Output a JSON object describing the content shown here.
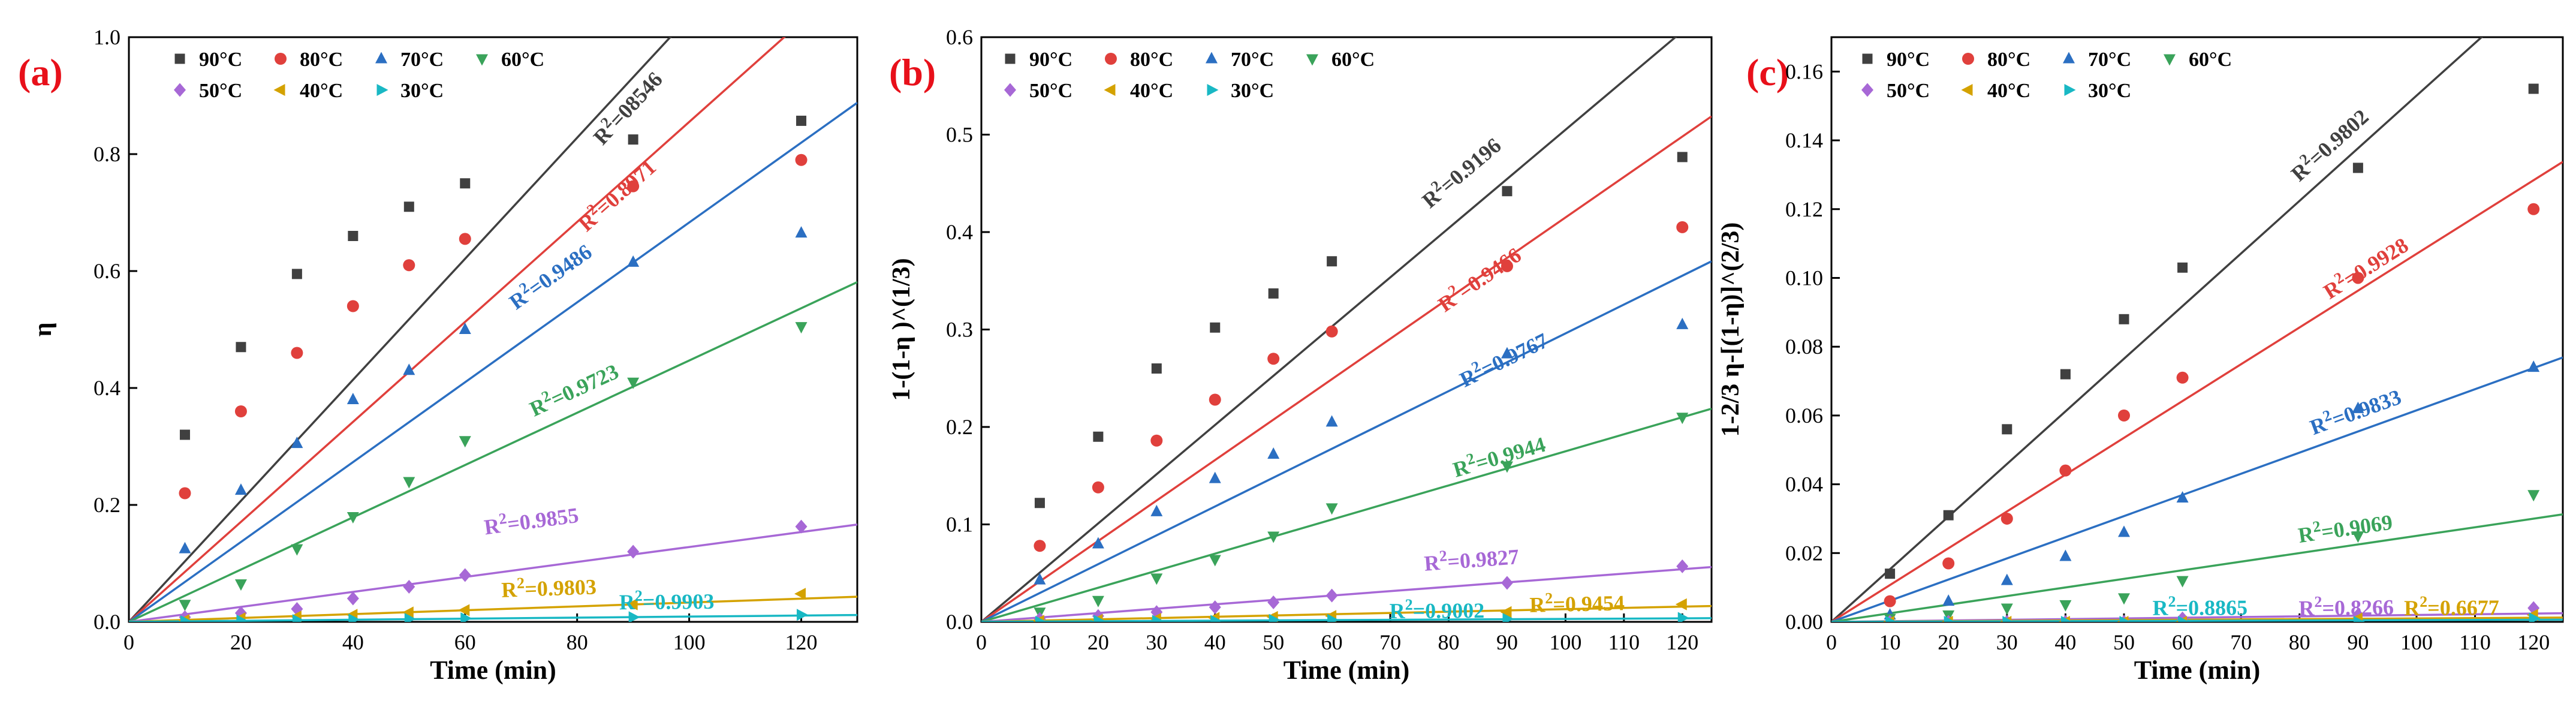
{
  "colors": {
    "90C": "#404040",
    "80C": "#e0403c",
    "70C": "#2b6fc2",
    "60C": "#3aa35a",
    "50C": "#a768d6",
    "40C": "#d4a200",
    "30C": "#19b8c4",
    "panel_label": "#e8101a"
  },
  "legend": {
    "s90": "90°C",
    "s80": "80°C",
    "s70": "70°C",
    "s60": "60°C",
    "s50": "50°C",
    "s40": "40°C",
    "s30": "30°C"
  },
  "chart_data": [
    {
      "panel": "(a)",
      "type": "scatter",
      "xlabel": "Time (min)",
      "ylabel": "η",
      "xlim": [
        0,
        130
      ],
      "ylim": [
        0,
        1.0
      ],
      "xticks": [
        0,
        20,
        40,
        60,
        80,
        100,
        120
      ],
      "yticks": [
        0.0,
        0.2,
        0.4,
        0.6,
        0.8,
        1.0
      ],
      "ytick_labels": [
        "0.0",
        "0.2",
        "0.4",
        "0.6",
        "0.8",
        "1.0"
      ],
      "x": [
        10,
        20,
        30,
        40,
        50,
        60,
        90,
        120
      ],
      "legend_position": "top-left",
      "series": [
        {
          "name": "90°C",
          "values": [
            0.32,
            0.47,
            0.595,
            0.66,
            0.71,
            0.75,
            0.825,
            0.857
          ],
          "fit_slope": 0.01035,
          "r2_label": "R²=08546",
          "r2_pos": [
            90,
            0.87
          ]
        },
        {
          "name": "80°C",
          "values": [
            0.22,
            0.36,
            0.46,
            0.54,
            0.61,
            0.655,
            0.745,
            0.79
          ],
          "fit_slope": 0.00855,
          "r2_label": "R²=0.8971",
          "r2_pos": [
            88,
            0.72
          ]
        },
        {
          "name": "70°C",
          "values": [
            0.125,
            0.225,
            0.305,
            0.38,
            0.43,
            0.5,
            0.615,
            0.665
          ],
          "fit_slope": 0.00683,
          "r2_label": "R²=0.9486",
          "r2_pos": [
            76,
            0.58
          ]
        },
        {
          "name": "60°C",
          "values": [
            0.03,
            0.065,
            0.125,
            0.18,
            0.24,
            0.31,
            0.41,
            0.505
          ],
          "fit_slope": 0.00447,
          "r2_label": "R²=0.9723",
          "r2_pos": [
            80,
            0.385
          ]
        },
        {
          "name": "50°C",
          "values": [
            0.008,
            0.015,
            0.022,
            0.04,
            0.06,
            0.08,
            0.12,
            0.163
          ],
          "fit_slope": 0.00128,
          "r2_label": "R²=0.9855",
          "r2_pos": [
            72,
            0.16
          ]
        },
        {
          "name": "40°C",
          "values": [
            0.003,
            0.006,
            0.009,
            0.012,
            0.016,
            0.02,
            0.03,
            0.048
          ],
          "fit_slope": 0.00033,
          "r2_label": "R²=0.9803",
          "r2_pos": [
            75,
            0.045
          ]
        },
        {
          "name": "30°C",
          "values": [
            0.001,
            0.002,
            0.003,
            0.004,
            0.005,
            0.006,
            0.008,
            0.012
          ],
          "fit_slope": 9e-05,
          "r2_label": "R²=0.9903",
          "r2_pos": [
            96,
            0.022
          ]
        }
      ]
    },
    {
      "panel": "(b)",
      "type": "scatter",
      "xlabel": "Time (min)",
      "ylabel": "1-(1-η )^(1/3)",
      "xlim": [
        0,
        125
      ],
      "ylim": [
        0,
        0.6
      ],
      "xticks": [
        0,
        10,
        20,
        30,
        40,
        50,
        60,
        70,
        80,
        90,
        100,
        110,
        120
      ],
      "yticks": [
        0.0,
        0.1,
        0.2,
        0.3,
        0.4,
        0.5,
        0.6
      ],
      "ytick_labels": [
        "0.0",
        "0.1",
        "0.2",
        "0.3",
        "0.4",
        "0.5",
        "0.6"
      ],
      "x": [
        10,
        20,
        30,
        40,
        50,
        60,
        90,
        120
      ],
      "legend_position": "top-left",
      "series": [
        {
          "name": "90°C",
          "values": [
            0.122,
            0.19,
            0.26,
            0.302,
            0.337,
            0.37,
            0.442,
            0.477
          ],
          "fit_slope": 0.00505,
          "r2_label": "R²=0.9196",
          "r2_pos": [
            83,
            0.455
          ]
        },
        {
          "name": "80°C",
          "values": [
            0.078,
            0.138,
            0.186,
            0.228,
            0.27,
            0.298,
            0.365,
            0.405
          ],
          "fit_slope": 0.00415,
          "r2_label": "R²=0.9466",
          "r2_pos": [
            86,
            0.345
          ]
        },
        {
          "name": "70°C",
          "values": [
            0.043,
            0.08,
            0.113,
            0.147,
            0.172,
            0.205,
            0.275,
            0.305
          ],
          "fit_slope": 0.00296,
          "r2_label": "R²=0.9767",
          "r2_pos": [
            90,
            0.262
          ]
        },
        {
          "name": "60°C",
          "values": [
            0.01,
            0.022,
            0.045,
            0.064,
            0.088,
            0.117,
            0.16,
            0.21
          ],
          "fit_slope": 0.00175,
          "r2_label": "R²=0.9944",
          "r2_pos": [
            89,
            0.162
          ]
        },
        {
          "name": "50°C",
          "values": [
            0.003,
            0.006,
            0.01,
            0.015,
            0.02,
            0.027,
            0.04,
            0.057
          ],
          "fit_slope": 0.00045,
          "r2_label": "R²=0.9827",
          "r2_pos": [
            84,
            0.056
          ]
        },
        {
          "name": "40°C",
          "values": [
            0.001,
            0.002,
            0.003,
            0.004,
            0.005,
            0.006,
            0.01,
            0.018
          ],
          "fit_slope": 0.00013,
          "r2_label": "R²=0.9454",
          "r2_pos": [
            102,
            0.011
          ]
        },
        {
          "name": "30°C",
          "values": [
            0.0,
            0.001,
            0.001,
            0.001,
            0.002,
            0.002,
            0.003,
            0.004
          ],
          "fit_slope": 3e-05,
          "r2_label": "R²=0.9002",
          "r2_pos": [
            78,
            0.004
          ]
        }
      ]
    },
    {
      "panel": "(c)",
      "type": "scatter",
      "xlabel": "Time (min)",
      "ylabel": "1-2/3 η-[(1-η)]^(2/3)",
      "xlim": [
        0,
        125
      ],
      "ylim": [
        0,
        0.17
      ],
      "xticks": [
        0,
        10,
        20,
        30,
        40,
        50,
        60,
        70,
        80,
        90,
        100,
        110,
        120
      ],
      "yticks": [
        0.0,
        0.02,
        0.04,
        0.06,
        0.08,
        0.1,
        0.12,
        0.14,
        0.16
      ],
      "ytick_labels": [
        "0.00",
        "0.02",
        "0.04",
        "0.06",
        "0.08",
        "0.10",
        "0.12",
        "0.14",
        "0.16"
      ],
      "x": [
        10,
        20,
        30,
        40,
        50,
        60,
        90,
        120
      ],
      "legend_position": "top-left",
      "series": [
        {
          "name": "90°C",
          "values": [
            0.014,
            0.031,
            0.056,
            0.072,
            0.088,
            0.103,
            0.132,
            0.155
          ],
          "fit_slope": 0.00153,
          "r2_label": "R²=0.9802",
          "r2_pos": [
            86,
            0.137
          ]
        },
        {
          "name": "80°C",
          "values": [
            0.006,
            0.017,
            0.03,
            0.044,
            0.06,
            0.071,
            0.1,
            0.12
          ],
          "fit_slope": 0.00107,
          "r2_label": "R²=0.9928",
          "r2_pos": [
            92,
            0.101
          ]
        },
        {
          "name": "70°C",
          "values": [
            0.002,
            0.006,
            0.012,
            0.019,
            0.026,
            0.036,
            0.062,
            0.074
          ],
          "fit_slope": 0.000615,
          "r2_label": "R²=0.9833",
          "r2_pos": [
            90,
            0.059
          ]
        },
        {
          "name": "60°C",
          "values": [
            0.001,
            0.002,
            0.004,
            0.005,
            0.007,
            0.012,
            0.025,
            0.037
          ],
          "fit_slope": 0.00025,
          "r2_label": "R²=0.9069",
          "r2_pos": [
            88,
            0.025
          ]
        },
        {
          "name": "50°C",
          "values": [
            0.0,
            0.0,
            0.0,
            0.0,
            0.0,
            0.001,
            0.002,
            0.004
          ],
          "fit_slope": 2e-05,
          "r2_label": "R²=0.8266",
          "r2_pos": [
            88,
            0.002
          ]
        },
        {
          "name": "40°C",
          "values": [
            0.0,
            0.0,
            0.0,
            0.0,
            0.0,
            0.0,
            0.001,
            0.002
          ],
          "fit_slope": 1e-05,
          "r2_label": "R²=0.6677",
          "r2_pos": [
            106,
            0.002
          ]
        },
        {
          "name": "30°C",
          "values": [
            0.0,
            0.0,
            0.0,
            0.0,
            0.0,
            0.0,
            0.0,
            0.001
          ],
          "fit_slope": 5e-06,
          "r2_label": "R²=0.8865",
          "r2_pos": [
            63,
            0.002
          ]
        }
      ]
    }
  ]
}
